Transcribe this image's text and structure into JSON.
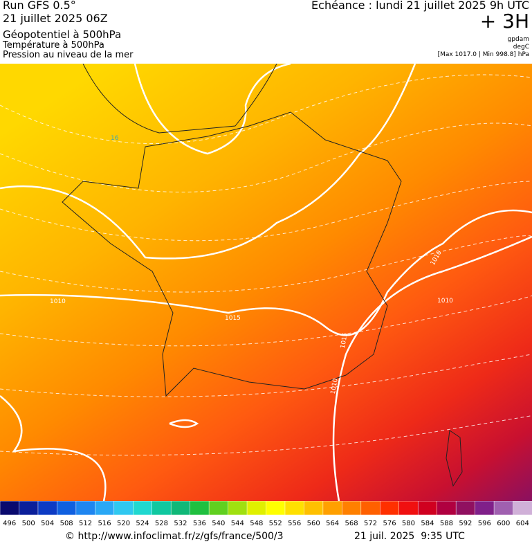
{
  "header": {
    "run": "Run GFS 0.5°",
    "date": "21 juillet 2025 06Z",
    "field_1": "Géopotentiel à 500hPa",
    "field_2": "Température à 500hPa",
    "field_3": "Pression au niveau de la mer",
    "valid": "Echéance : lundi 21 juillet 2025 9h UTC",
    "lead": "+ 3H",
    "unit_1": "gpdam",
    "unit_2": "degC",
    "range": "[Max 1017.0 | Min 998.8] hPa"
  },
  "map": {
    "contour_labels": [
      "16",
      "1010",
      "1010",
      "1010",
      "1015",
      "1015",
      "1010"
    ]
  },
  "colorbar": {
    "ticks": [
      496,
      500,
      504,
      508,
      512,
      516,
      520,
      524,
      528,
      532,
      536,
      540,
      544,
      548,
      552,
      556,
      560,
      564,
      568,
      572,
      576,
      580,
      584,
      588,
      592,
      596,
      600,
      604
    ],
    "colors": [
      "#0a0a6e",
      "#0b1f9a",
      "#0d3bc4",
      "#1060e0",
      "#1f86f0",
      "#2aa8f5",
      "#30c8f0",
      "#20d8d0",
      "#10c8a0",
      "#10b878",
      "#20c040",
      "#60d020",
      "#a0e010",
      "#e0f000",
      "#ffff00",
      "#ffe000",
      "#ffc000",
      "#ffa000",
      "#ff8000",
      "#ff6000",
      "#ff3000",
      "#f01010",
      "#d00020",
      "#b00040",
      "#901060",
      "#80208a",
      "#a060b0",
      "#d0b0d8"
    ]
  },
  "footer": {
    "source": "© http://www.infoclimat.fr/z/gfs/france/500/3",
    "timestamp": "21 juil. 2025  9:35 UTC"
  }
}
